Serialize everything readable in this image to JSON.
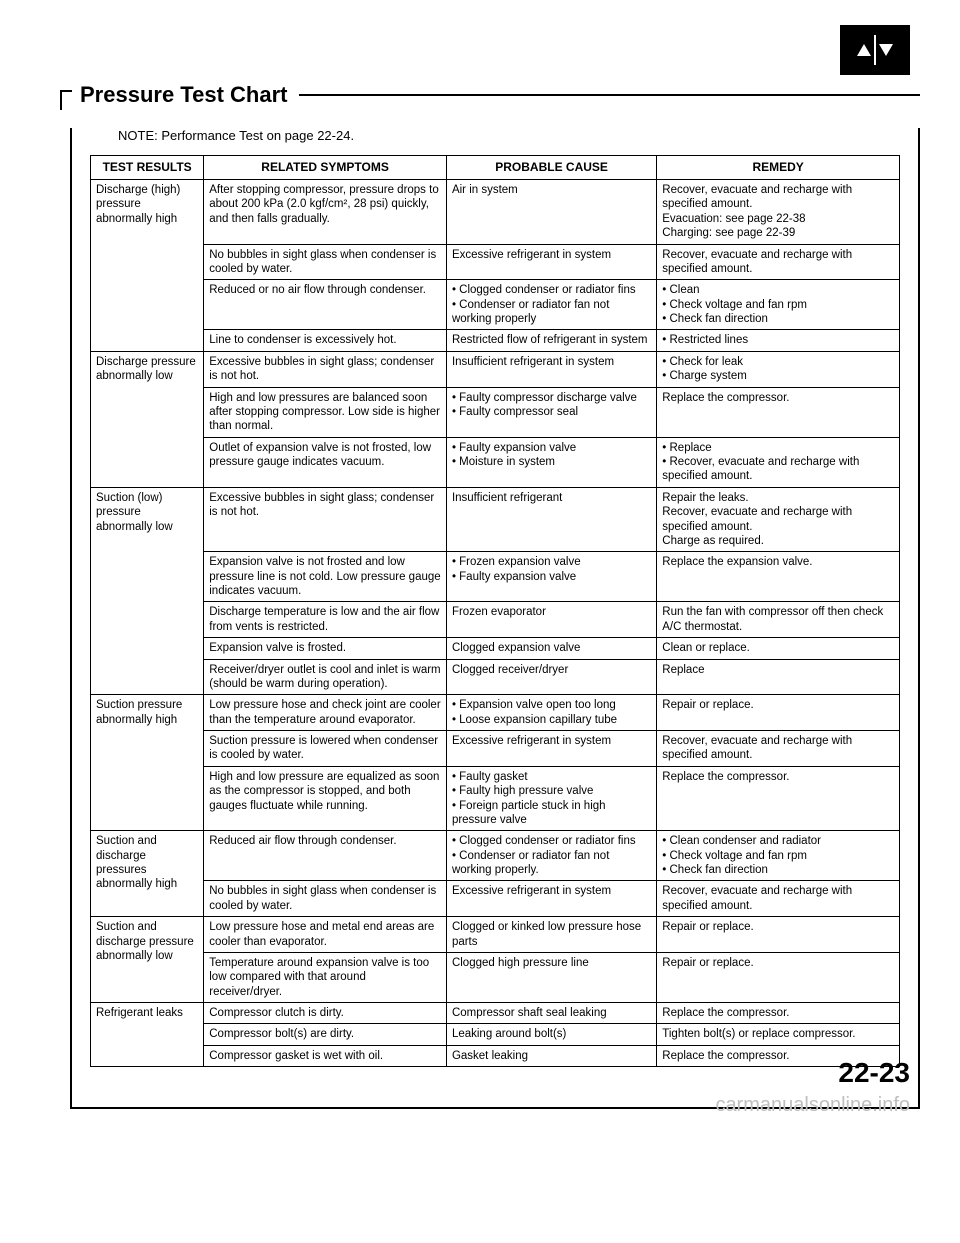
{
  "title": "Pressure Test Chart",
  "note": "NOTE: Performance Test on page 22-24.",
  "page_num": "22-23",
  "watermark": "carmanualsonline.info",
  "headers": [
    "TEST RESULTS",
    "RELATED SYMPTOMS",
    "PROBABLE CAUSE",
    "REMEDY"
  ],
  "groups": [
    {
      "result": "Discharge (high) pressure abnormally high",
      "rows": [
        {
          "symptom": "After stopping compressor, pressure drops to about 200 kPa (2.0 kgf/cm², 28 psi) quickly, and then falls gradually.",
          "cause": "Air in system",
          "remedy": "Recover, evacuate and recharge with specified amount.\nEvacuation: see page 22-38\nCharging: see page 22-39"
        },
        {
          "symptom": "No bubbles in sight glass when condenser is cooled by water.",
          "cause": "Excessive refrigerant in system",
          "remedy": "Recover, evacuate and recharge with specified amount."
        },
        {
          "symptom": "Reduced or no air flow through condenser.",
          "cause": "• Clogged condenser or radiator fins\n• Condenser or radiator fan not working properly",
          "remedy": "• Clean\n• Check voltage and fan rpm\n• Check fan direction"
        },
        {
          "symptom": "Line to condenser is excessively hot.",
          "cause": "Restricted flow of refrigerant in system",
          "remedy": "• Restricted lines"
        }
      ]
    },
    {
      "result": "Discharge pressure abnormally low",
      "rows": [
        {
          "symptom": "Excessive bubbles in sight glass; condenser is not hot.",
          "cause": "Insufficient refrigerant in system",
          "remedy": "• Check for leak\n• Charge system"
        },
        {
          "symptom": "High and low pressures are balanced soon after stopping compressor. Low side is higher than normal.",
          "cause": "• Faulty compressor discharge valve\n• Faulty compressor seal",
          "remedy": "Replace the compressor."
        },
        {
          "symptom": "Outlet of expansion valve is not frosted, low pressure gauge indicates vacuum.",
          "cause": "• Faulty expansion valve\n• Moisture in system",
          "remedy": "• Replace\n• Recover, evacuate and recharge with specified amount."
        }
      ]
    },
    {
      "result": "Suction (low) pressure abnormally low",
      "rows": [
        {
          "symptom": "Excessive bubbles in sight glass; condenser is not hot.",
          "cause": "Insufficient refrigerant",
          "remedy": "Repair the leaks.\nRecover, evacuate and recharge with specified amount.\nCharge as required."
        },
        {
          "symptom": "Expansion valve is not frosted and low pressure line is not cold. Low pressure gauge indicates vacuum.",
          "cause": "• Frozen expansion valve\n• Faulty expansion valve",
          "remedy": "Replace the expansion valve."
        },
        {
          "symptom": "Discharge temperature is low and the air flow from vents is restricted.",
          "cause": "Frozen evaporator",
          "remedy": "Run the fan with compressor off then check A/C thermostat."
        },
        {
          "symptom": "Expansion valve is frosted.",
          "cause": "Clogged expansion valve",
          "remedy": "Clean or replace."
        },
        {
          "symptom": "Receiver/dryer outlet is cool and inlet is warm (should be warm during operation).",
          "cause": "Clogged receiver/dryer",
          "remedy": "Replace"
        }
      ]
    },
    {
      "result": "Suction pressure abnormally high",
      "rows": [
        {
          "symptom": "Low pressure hose and check joint are cooler than the temperature around evaporator.",
          "cause": "• Expansion valve open too long\n• Loose expansion capillary tube",
          "remedy": "Repair or replace."
        },
        {
          "symptom": "Suction pressure is lowered when condenser is cooled by water.",
          "cause": "Excessive refrigerant in system",
          "remedy": "Recover, evacuate and recharge with specified amount."
        },
        {
          "symptom": "High and low pressure are equalized as soon as the compressor is stopped, and both gauges fluctuate while running.",
          "cause": "• Faulty gasket\n• Faulty high pressure valve\n• Foreign particle stuck in high pressure valve",
          "remedy": "Replace the compressor."
        }
      ]
    },
    {
      "result": "Suction and discharge pressures abnormally high",
      "rows": [
        {
          "symptom": "Reduced air flow through condenser.",
          "cause": "• Clogged condenser or radiator fins\n• Condenser or radiator fan not working properly.",
          "remedy": "• Clean condenser and radiator\n• Check voltage and fan rpm\n• Check fan direction"
        },
        {
          "symptom": "No bubbles in sight glass when condenser is cooled by water.",
          "cause": "Excessive refrigerant in system",
          "remedy": "Recover, evacuate and recharge with specified amount."
        }
      ]
    },
    {
      "result": "Suction and discharge pressure abnormally low",
      "rows": [
        {
          "symptom": "Low pressure hose and metal end areas are cooler than evaporator.",
          "cause": "Clogged or kinked low pressure hose parts",
          "remedy": "Repair or replace."
        },
        {
          "symptom": "Temperature around expansion valve is too low compared with that around receiver/dryer.",
          "cause": "Clogged high pressure line",
          "remedy": "Repair or replace."
        }
      ]
    },
    {
      "result": "Refrigerant leaks",
      "rows": [
        {
          "symptom": "Compressor clutch is dirty.",
          "cause": "Compressor shaft seal leaking",
          "remedy": "Replace the compressor."
        },
        {
          "symptom": "Compressor bolt(s) are dirty.",
          "cause": "Leaking around bolt(s)",
          "remedy": "Tighten bolt(s) or replace compressor."
        },
        {
          "symptom": "Compressor gasket is wet with oil.",
          "cause": "Gasket leaking",
          "remedy": "Replace the compressor."
        }
      ]
    }
  ]
}
